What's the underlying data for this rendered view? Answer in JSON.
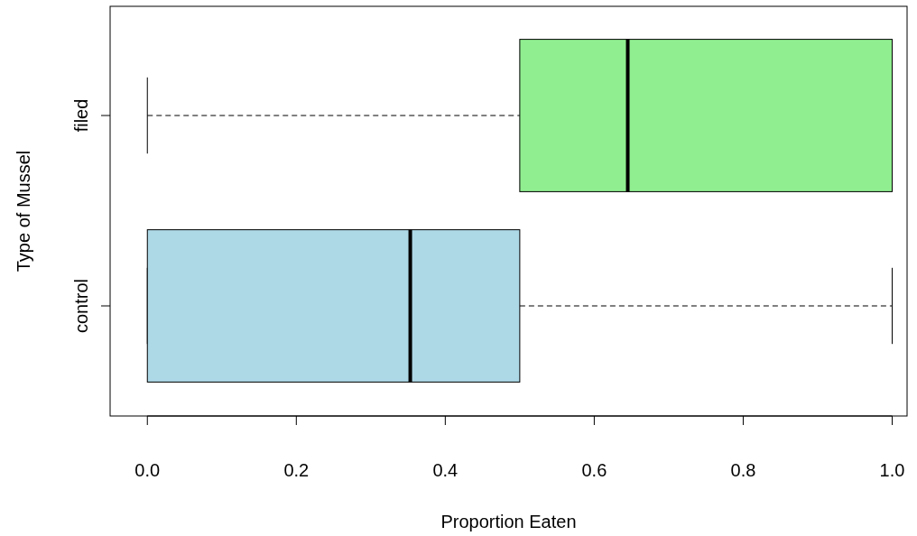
{
  "chart_data": {
    "type": "box",
    "orientation": "horizontal",
    "xlabel": "Proportion Eaten",
    "ylabel": "Type of Mussel",
    "categories": [
      "filed",
      "control"
    ],
    "boxes": [
      {
        "low": 0,
        "q1": 0.5,
        "median": 0.645,
        "q3": 1,
        "high": 1
      },
      {
        "low": 0,
        "q1": 0,
        "median": 0.353,
        "q3": 0.5,
        "high": 1
      }
    ],
    "colors": [
      "#90ee90",
      "#add8e6"
    ],
    "xlim": [
      -0.05,
      1.02
    ],
    "xticks": [
      {
        "value": 0,
        "label": "0.0"
      },
      {
        "value": 0.2,
        "label": "0.2"
      },
      {
        "value": 0.4,
        "label": "0.4"
      },
      {
        "value": 0.6,
        "label": "0.6"
      },
      {
        "value": 0.8,
        "label": "0.8"
      },
      {
        "value": 1,
        "label": "1.0"
      }
    ]
  }
}
